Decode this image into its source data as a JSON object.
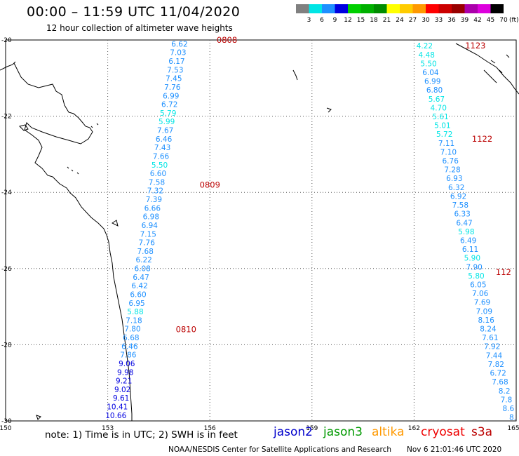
{
  "header": {
    "title": "00:00 – 11:59 UTC 11/04/2020",
    "subtitle": "12 hour collection of altimeter wave heights"
  },
  "legend": {
    "unit": "(ft)",
    "bins": [
      {
        "label": "3",
        "color": "#808080"
      },
      {
        "label": "6",
        "color": "#00e5e5"
      },
      {
        "label": "9",
        "color": "#1e90ff"
      },
      {
        "label": "12",
        "color": "#0000e0"
      },
      {
        "label": "15",
        "color": "#00d000"
      },
      {
        "label": "18",
        "color": "#00b000"
      },
      {
        "label": "21",
        "color": "#008c00"
      },
      {
        "label": "24",
        "color": "#ffff00"
      },
      {
        "label": "27",
        "color": "#ffcc00"
      },
      {
        "label": "30",
        "color": "#ff9900"
      },
      {
        "label": "33",
        "color": "#ff0000"
      },
      {
        "label": "36",
        "color": "#cc0000"
      },
      {
        "label": "39",
        "color": "#990000"
      },
      {
        "label": "42",
        "color": "#aa00aa"
      },
      {
        "label": "45",
        "color": "#dd00dd"
      },
      {
        "label": "70",
        "color": "#000000"
      }
    ]
  },
  "axes": {
    "lon_ticks": [
      "150",
      "153",
      "156",
      "159",
      "162",
      "165"
    ],
    "lat_ticks": [
      "-20",
      "-22",
      "-24",
      "-26",
      "-28",
      "-30"
    ]
  },
  "tracks": [
    {
      "lon_start": 155.35,
      "lon_end": 153.55,
      "lat_start": -20.1,
      "lat_end": -29.85,
      "values": [
        "6.62",
        "7.03",
        "6.17",
        "7.53",
        "7.45",
        "7.76",
        "6.99",
        "6.72",
        "5.79",
        "5.99",
        "7.67",
        "6.46",
        "7.43",
        "7.66",
        "5.50",
        "6.60",
        "7.58",
        "7.32",
        "7.39",
        "6.66",
        "6.98",
        "6.94",
        "7.15",
        "7.76",
        "7.68",
        "6.22",
        "6.08",
        "6.47",
        "6.42",
        "6.60",
        "6.95",
        "5.88",
        "7.18",
        "7.80",
        "6.68",
        "6.46",
        "7.86",
        "9.06",
        "9.98",
        "9.21",
        "9.02",
        "9.61",
        "10.41",
        "10.66"
      ]
    },
    {
      "lon_start": 162.55,
      "lon_end": 165.0,
      "lat_start": -20.15,
      "lat_end": -29.9,
      "values": [
        "4.22",
        "4.48",
        "5.50",
        "6.04",
        "6.99",
        "6.80",
        "5.67",
        "4.70",
        "5.61",
        "5.01",
        "5.72",
        "7.11",
        "7.10",
        "6.76",
        "7.28",
        "6.93",
        "6.32",
        "6.92",
        "7.58",
        "6.33",
        "6.47",
        "5.98",
        "6.49",
        "6.11",
        "5.90",
        "7.90",
        "5.80",
        "6.05",
        "7.06",
        "7.69",
        "7.09",
        "8.16",
        "8.24",
        "7.61",
        "7.92",
        "7.44",
        "7.82",
        "6.72",
        "7.68",
        "8.2",
        "7.8",
        "8.6",
        "8."
      ]
    }
  ],
  "time_labels": [
    {
      "text": "0808",
      "lon": 156.2,
      "lat": -20.0
    },
    {
      "text": "0809",
      "lon": 155.7,
      "lat": -23.8
    },
    {
      "text": "0810",
      "lon": 155.0,
      "lat": -27.6
    },
    {
      "text": "1123",
      "lon": 163.5,
      "lat": -20.15
    },
    {
      "text": "1122",
      "lon": 163.7,
      "lat": -22.6
    },
    {
      "text": "112",
      "lon": 164.4,
      "lat": -26.1
    }
  ],
  "footer": {
    "note": "note: 1) Time is in UTC; 2) SWH is in feet",
    "satellites": [
      {
        "name": "jason2",
        "color": "#0000cc"
      },
      {
        "name": "jason3",
        "color": "#009900"
      },
      {
        "name": "altika",
        "color": "#ff9900"
      },
      {
        "name": "cryosat",
        "color": "#ee0000"
      },
      {
        "name": "s3a",
        "color": "#bb0000"
      }
    ],
    "credit": "NOAA/NESDIS Center for Satellite Applications and Research",
    "generated": "Nov  6 21:01:46 UTC 2020"
  }
}
